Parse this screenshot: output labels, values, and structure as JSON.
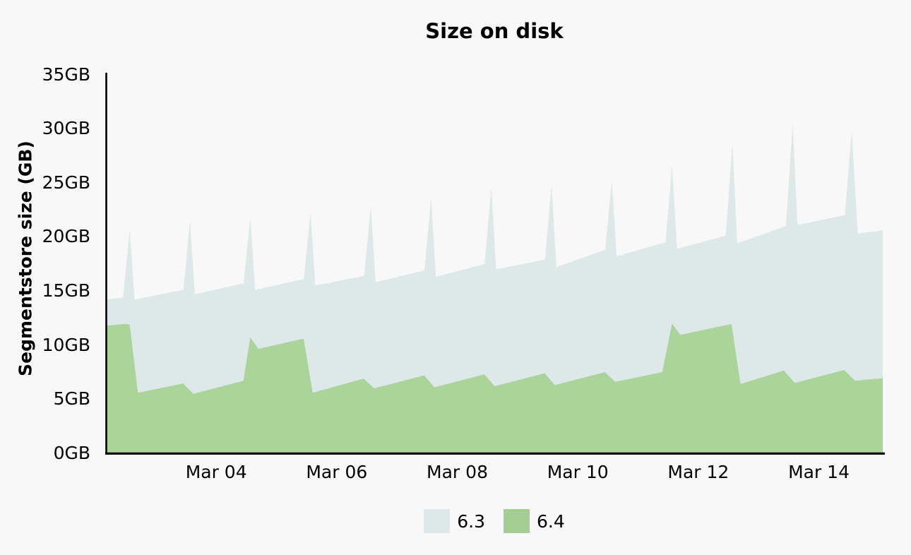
{
  "title": "Size on disk",
  "y_axis": {
    "title": "Segmentstore size (GB)",
    "ticks": [
      {
        "label": "0GB",
        "value": 0
      },
      {
        "label": "5GB",
        "value": 5
      },
      {
        "label": "10GB",
        "value": 10
      },
      {
        "label": "15GB",
        "value": 15
      },
      {
        "label": "20GB",
        "value": 20
      },
      {
        "label": "25GB",
        "value": 25
      },
      {
        "label": "30GB",
        "value": 30
      },
      {
        "label": "35GB",
        "value": 35
      }
    ]
  },
  "x_axis": {
    "ticks": [
      {
        "label": "Mar 04",
        "t": 4
      },
      {
        "label": "Mar 06",
        "t": 6
      },
      {
        "label": "Mar 08",
        "t": 8
      },
      {
        "label": "Mar 10",
        "t": 10
      },
      {
        "label": "Mar 12",
        "t": 12
      },
      {
        "label": "Mar 14",
        "t": 14
      }
    ]
  },
  "legend": [
    {
      "label": "6.3",
      "color": "#dde9e8"
    },
    {
      "label": "6.4",
      "color": "#a4cf93"
    }
  ],
  "colors": {
    "background": "#f8f8f8",
    "axis": "#000000",
    "series_63_fill": "#dce9e8",
    "series_64_fill": "#abd49b",
    "text": "#000000"
  },
  "chart_data": {
    "type": "area",
    "title": "Size on disk",
    "xlabel": "",
    "ylabel": "Segmentstore size (GB)",
    "ylim": [
      0,
      35
    ],
    "xlim_march_days": [
      2.17,
      15.06
    ],
    "stacked": false,
    "grid": false,
    "legend_position": "bottom",
    "x_unit": "day of March (fractional)",
    "y_unit": "GB",
    "series": [
      {
        "name": "6.3",
        "color": "#dce9e8",
        "description": "Rising baseline ~14.2GB to ~22GB with daily sharp spikes",
        "points": [
          [
            2.17,
            14.2
          ],
          [
            2.455,
            14.4
          ],
          [
            2.565,
            20.7
          ],
          [
            2.645,
            14.2
          ],
          [
            3.455,
            15.1
          ],
          [
            3.565,
            21.5
          ],
          [
            3.645,
            14.7
          ],
          [
            4.455,
            15.7
          ],
          [
            4.565,
            21.8
          ],
          [
            4.645,
            15.1
          ],
          [
            5.455,
            16.1
          ],
          [
            5.565,
            22.3
          ],
          [
            5.645,
            15.5
          ],
          [
            6.455,
            16.4
          ],
          [
            6.565,
            22.9
          ],
          [
            6.645,
            15.8
          ],
          [
            7.455,
            16.9
          ],
          [
            7.565,
            23.5
          ],
          [
            7.645,
            16.3
          ],
          [
            8.455,
            17.5
          ],
          [
            8.565,
            24.6
          ],
          [
            8.645,
            17.0
          ],
          [
            9.455,
            17.9
          ],
          [
            9.565,
            24.8
          ],
          [
            9.645,
            17.2
          ],
          [
            10.455,
            18.8
          ],
          [
            10.565,
            25.2
          ],
          [
            10.645,
            18.2
          ],
          [
            11.455,
            19.5
          ],
          [
            11.565,
            26.6
          ],
          [
            11.645,
            18.9
          ],
          [
            12.455,
            20.1
          ],
          [
            12.565,
            28.7
          ],
          [
            12.645,
            19.4
          ],
          [
            13.455,
            21.0
          ],
          [
            13.565,
            30.5
          ],
          [
            13.645,
            21.1
          ],
          [
            14.43,
            22.0
          ],
          [
            14.545,
            29.8
          ],
          [
            14.645,
            20.3
          ],
          [
            15.06,
            20.6
          ]
        ]
      },
      {
        "name": "6.4",
        "color": "#abd49b",
        "description": "Sawtooth ~6-7.7GB with elevated plateaus ~12GB at start, Mar 04.5-05.5 and Mar 11.5-12.6",
        "points": [
          [
            2.17,
            11.8
          ],
          [
            2.5,
            11.95
          ],
          [
            2.565,
            11.9
          ],
          [
            2.7,
            5.6
          ],
          [
            3.45,
            6.45
          ],
          [
            3.62,
            5.5
          ],
          [
            4.45,
            6.7
          ],
          [
            4.565,
            10.7
          ],
          [
            4.7,
            9.65
          ],
          [
            5.45,
            10.6
          ],
          [
            5.6,
            5.6
          ],
          [
            6.45,
            6.9
          ],
          [
            6.62,
            6.0
          ],
          [
            7.45,
            7.2
          ],
          [
            7.62,
            6.1
          ],
          [
            8.45,
            7.3
          ],
          [
            8.62,
            6.2
          ],
          [
            9.45,
            7.4
          ],
          [
            9.62,
            6.3
          ],
          [
            10.45,
            7.5
          ],
          [
            10.62,
            6.6
          ],
          [
            11.4,
            7.5
          ],
          [
            11.565,
            12.0
          ],
          [
            11.7,
            10.95
          ],
          [
            12.55,
            11.95
          ],
          [
            12.7,
            6.4
          ],
          [
            13.42,
            7.65
          ],
          [
            13.6,
            6.5
          ],
          [
            14.42,
            7.7
          ],
          [
            14.6,
            6.7
          ],
          [
            15.06,
            6.95
          ]
        ]
      }
    ],
    "pixel_mapping": {
      "t_min": 2.17,
      "t_max": 15.06,
      "x_min": 150,
      "x_max": 1250,
      "gb_max": 35,
      "y_zero": 642,
      "y_top": 105.5
    }
  }
}
